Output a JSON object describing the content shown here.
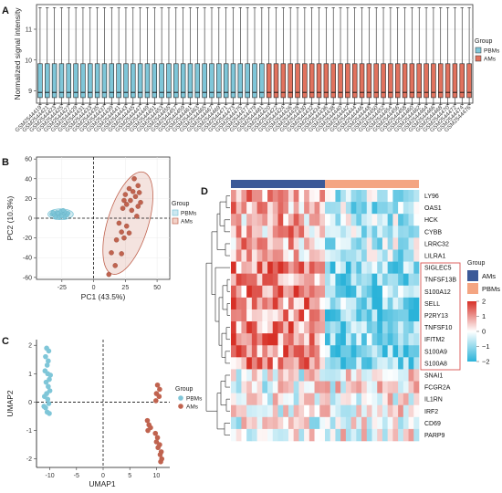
{
  "figure": {
    "panel_labels": [
      "A",
      "B",
      "C",
      "D"
    ]
  },
  "chart_data": [
    {
      "panel": "A",
      "type": "box",
      "ylabel": "Normalized signal intensity",
      "yticks": [
        9,
        10,
        11
      ],
      "ylim": [
        8.6,
        11.8
      ],
      "legend": {
        "title": "Group",
        "entries": [
          "PBMs",
          "AMs"
        ],
        "placement": "right"
      },
      "colors": {
        "PBMs": "#7fc6d8",
        "AMs": "#e1725e"
      },
      "samples": [
        {
          "id": "GSM2544419",
          "group": "PBMs"
        },
        {
          "id": "GSM2544421",
          "group": "PBMs"
        },
        {
          "id": "GSM2544423",
          "group": "PBMs"
        },
        {
          "id": "GSM2544425",
          "group": "PBMs"
        },
        {
          "id": "GSM2544427",
          "group": "PBMs"
        },
        {
          "id": "GSM2544429",
          "group": "PBMs"
        },
        {
          "id": "GSM2544431",
          "group": "PBMs"
        },
        {
          "id": "GSM2544433",
          "group": "PBMs"
        },
        {
          "id": "GSM2544435",
          "group": "PBMs"
        },
        {
          "id": "GSM2544437",
          "group": "PBMs"
        },
        {
          "id": "GSM2544439",
          "group": "PBMs"
        },
        {
          "id": "GSM2544441",
          "group": "PBMs"
        },
        {
          "id": "GSM2544443",
          "group": "PBMs"
        },
        {
          "id": "GSM2544445",
          "group": "PBMs"
        },
        {
          "id": "GSM2544447",
          "group": "PBMs"
        },
        {
          "id": "GSM2544449",
          "group": "PBMs"
        },
        {
          "id": "GSM2544451",
          "group": "PBMs"
        },
        {
          "id": "GSM2544453",
          "group": "PBMs"
        },
        {
          "id": "GSM2544455",
          "group": "PBMs"
        },
        {
          "id": "GSM2544457",
          "group": "PBMs"
        },
        {
          "id": "GSM2544459",
          "group": "PBMs"
        },
        {
          "id": "GSM2544461",
          "group": "PBMs"
        },
        {
          "id": "GSM2544463",
          "group": "PBMs"
        },
        {
          "id": "GSM2544465",
          "group": "PBMs"
        },
        {
          "id": "GSM2544467",
          "group": "PBMs"
        },
        {
          "id": "GSM2544469",
          "group": "PBMs"
        },
        {
          "id": "GSM2544471",
          "group": "PBMs"
        },
        {
          "id": "GSM2544473",
          "group": "PBMs"
        },
        {
          "id": "GSM2544475",
          "group": "PBMs"
        },
        {
          "id": "GSM2544477",
          "group": "PBMs"
        },
        {
          "id": "GSM2544479",
          "group": "PBMs"
        },
        {
          "id": "GSM2544481",
          "group": "PBMs"
        },
        {
          "id": "GSM2544420",
          "group": "AMs"
        },
        {
          "id": "GSM2544422",
          "group": "AMs"
        },
        {
          "id": "GSM2544424",
          "group": "AMs"
        },
        {
          "id": "GSM2544426",
          "group": "AMs"
        },
        {
          "id": "GSM2544428",
          "group": "AMs"
        },
        {
          "id": "GSM2544430",
          "group": "AMs"
        },
        {
          "id": "GSM2544432",
          "group": "AMs"
        },
        {
          "id": "GSM2544434",
          "group": "AMs"
        },
        {
          "id": "GSM2544436",
          "group": "AMs"
        },
        {
          "id": "GSM2544438",
          "group": "AMs"
        },
        {
          "id": "GSM2544440",
          "group": "AMs"
        },
        {
          "id": "GSM2544442",
          "group": "AMs"
        },
        {
          "id": "GSM2544444",
          "group": "AMs"
        },
        {
          "id": "GSM2544446",
          "group": "AMs"
        },
        {
          "id": "GSM2544448",
          "group": "AMs"
        },
        {
          "id": "GSM2544450",
          "group": "AMs"
        },
        {
          "id": "GSM2544452",
          "group": "AMs"
        },
        {
          "id": "GSM2544454",
          "group": "AMs"
        },
        {
          "id": "GSM2544456",
          "group": "AMs"
        },
        {
          "id": "GSM2544458",
          "group": "AMs"
        },
        {
          "id": "GSM2544460",
          "group": "AMs"
        },
        {
          "id": "GSM2544462",
          "group": "AMs"
        },
        {
          "id": "GSM2544464",
          "group": "AMs"
        },
        {
          "id": "GSM2544466",
          "group": "AMs"
        },
        {
          "id": "GSM2544468",
          "group": "AMs"
        },
        {
          "id": "GSM2544470",
          "group": "AMs"
        },
        {
          "id": "GSM2544472",
          "group": "AMs"
        },
        {
          "id": "GSM2544474",
          "group": "AMs"
        },
        {
          "id": "GSM2544476",
          "group": "AMs"
        }
      ],
      "box_stats": {
        "whisker_low": 8.55,
        "q1": 8.78,
        "median": 8.95,
        "q3": 9.88,
        "whisker_high": 11.7
      }
    },
    {
      "panel": "B",
      "type": "scatter",
      "xlabel": "PC1 (43.5%)",
      "ylabel": "PC2 (10.3%)",
      "xticks": [
        -25,
        0,
        25,
        50
      ],
      "yticks": [
        -60,
        -40,
        -20,
        0,
        20,
        40,
        60
      ],
      "xlim": [
        -45,
        60
      ],
      "ylim": [
        -62,
        62
      ],
      "reference_lines": {
        "x": 0,
        "y": 0
      },
      "legend": {
        "title": "Group",
        "entries": [
          "PBMs",
          "AMs"
        ],
        "placement": "right"
      },
      "colors": {
        "PBMs": "#7fc6d8",
        "AMs": "#c0634f"
      },
      "series": [
        {
          "name": "PBMs",
          "points": [
            [
              -33,
              4
            ],
            [
              -31,
              3
            ],
            [
              -29,
              6
            ],
            [
              -28,
              2
            ],
            [
              -27,
              4
            ],
            [
              -26,
              3
            ],
            [
              -25,
              5
            ],
            [
              -24,
              2
            ],
            [
              -23,
              4
            ],
            [
              -22,
              6
            ],
            [
              -21,
              3
            ],
            [
              -20,
              5
            ],
            [
              -30,
              1
            ],
            [
              -26,
              7
            ],
            [
              -24,
              8
            ],
            [
              -32,
              6
            ],
            [
              -28,
              5
            ],
            [
              -23,
              1
            ],
            [
              -27,
              1
            ],
            [
              -25,
              2
            ]
          ]
        },
        {
          "name": "AMs",
          "points": [
            [
              32,
              40
            ],
            [
              35,
              33
            ],
            [
              28,
              30
            ],
            [
              31,
              27
            ],
            [
              36,
              26
            ],
            [
              25,
              24
            ],
            [
              33,
              22
            ],
            [
              29,
              18
            ],
            [
              24,
              18
            ],
            [
              26,
              14
            ],
            [
              35,
              12
            ],
            [
              23,
              10
            ],
            [
              37,
              16
            ],
            [
              30,
              8
            ],
            [
              34,
              2
            ],
            [
              20,
              -5
            ],
            [
              26,
              -8
            ],
            [
              22,
              -14
            ],
            [
              24,
              -20
            ],
            [
              18,
              -22
            ],
            [
              28,
              -15
            ],
            [
              14,
              -35
            ],
            [
              22,
              -36
            ],
            [
              17,
              -48
            ],
            [
              12,
              -57
            ]
          ]
        }
      ],
      "ellipses": [
        {
          "group": "PBMs",
          "center": [
            -26,
            4
          ],
          "rx": 10,
          "ry": 5.5,
          "angle": 0
        },
        {
          "group": "AMs",
          "center": [
            27,
            -5
          ],
          "rx": 16,
          "ry": 54,
          "angle": 0.3
        }
      ]
    },
    {
      "panel": "C",
      "type": "scatter",
      "xlabel": "UMAP1",
      "ylabel": "UMAP2",
      "xticks": [
        -10,
        -5,
        0,
        5,
        10
      ],
      "yticks": [
        -2,
        -1,
        0,
        1,
        2
      ],
      "xlim": [
        -12.5,
        12.5
      ],
      "ylim": [
        -2.3,
        2.2
      ],
      "reference_lines": {
        "x": 0,
        "y": 0
      },
      "legend": {
        "title": "Group",
        "entries": [
          "PBMs",
          "AMs"
        ],
        "placement": "right"
      },
      "colors": {
        "PBMs": "#7fc6d8",
        "AMs": "#c0634f"
      },
      "series": [
        {
          "name": "PBMs",
          "points": [
            [
              -10.6,
              1.9
            ],
            [
              -10.2,
              1.8
            ],
            [
              -10.8,
              1.6
            ],
            [
              -10.3,
              1.45
            ],
            [
              -10.5,
              1.3
            ],
            [
              -10.9,
              1.1
            ],
            [
              -10.4,
              1.0
            ],
            [
              -10.1,
              0.8
            ],
            [
              -10.7,
              0.7
            ],
            [
              -10.3,
              0.55
            ],
            [
              -10.0,
              0.4
            ],
            [
              -10.6,
              0.3
            ],
            [
              -11.0,
              0.2
            ],
            [
              -10.4,
              0.1
            ],
            [
              -10.2,
              -0.05
            ],
            [
              -10.8,
              -0.2
            ],
            [
              -10.5,
              -0.35
            ],
            [
              -10.1,
              -0.4
            ],
            [
              -11.1,
              -0.15
            ],
            [
              -9.9,
              0.95
            ]
          ]
        },
        {
          "name": "AMs",
          "points": [
            [
              10.2,
              0.6
            ],
            [
              10.6,
              0.45
            ],
            [
              10.0,
              0.3
            ],
            [
              10.5,
              0.2
            ],
            [
              9.9,
              0.05
            ],
            [
              8.3,
              -0.65
            ],
            [
              8.6,
              -0.8
            ],
            [
              8.9,
              -0.9
            ],
            [
              8.4,
              -1.0
            ],
            [
              9.8,
              -1.1
            ],
            [
              10.2,
              -1.25
            ],
            [
              10.0,
              -1.4
            ],
            [
              10.6,
              -1.5
            ],
            [
              10.3,
              -1.6
            ],
            [
              10.9,
              -1.75
            ],
            [
              10.7,
              -1.85
            ],
            [
              11.0,
              -2.0
            ],
            [
              10.8,
              -2.1
            ]
          ]
        }
      ]
    },
    {
      "panel": "D",
      "type": "heatmap",
      "rows": [
        "LY96",
        "OAS1",
        "HCK",
        "CYBB",
        "LRRC32",
        "LILRA1",
        "SIGLEC5",
        "TNFSF13B",
        "S100A12",
        "SELL",
        "P2RY13",
        "TNFSF10",
        "IFITM2",
        "S100A9",
        "S100A8",
        "SNAI1",
        "FCGR2A",
        "IL1RN",
        "IRF2",
        "CD69",
        "PARP9"
      ],
      "highlighted_rows": [
        "SIGLEC5",
        "TNFSF13B",
        "S100A12",
        "SELL",
        "P2RY13",
        "TNFSF10",
        "IFITM2",
        "S100A9",
        "S100A8"
      ],
      "column_groups": [
        {
          "name": "AMs",
          "count": 18
        },
        {
          "name": "PBMs",
          "count": 18
        }
      ],
      "colors": {
        "AMs": "#3b5998",
        "PBMs": "#f4a582",
        "high": "#d73027",
        "mid": "#ffffff",
        "low": "#2bb3d9"
      },
      "legend": {
        "title": "Group",
        "entries": [
          "AMs",
          "PBMs"
        ],
        "placement": "right"
      },
      "colorbar": {
        "ticks": [
          2,
          1,
          0,
          -1,
          -2
        ],
        "range": [
          -2,
          2
        ]
      }
    }
  ]
}
